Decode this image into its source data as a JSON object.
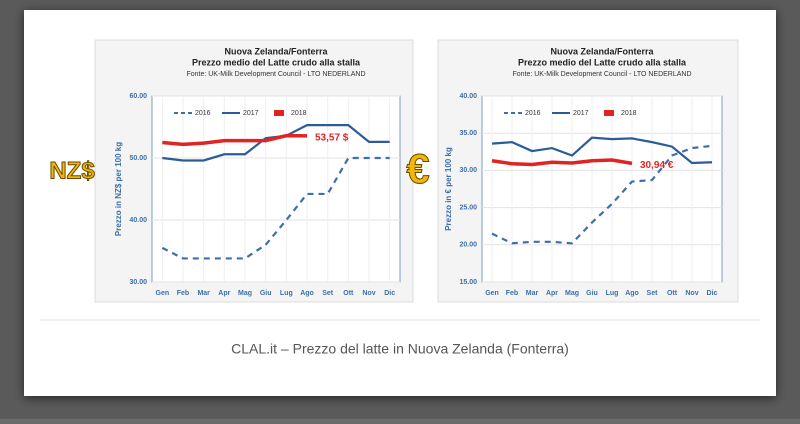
{
  "caption": "CLAL.it – Prezzo del latte in Nuova Zelanda (Fonterra)",
  "chart_data": [
    {
      "type": "line",
      "title": "Nuova Zelanda/Fonterra",
      "subtitle": "Prezzo medio del Latte crudo alla stalla",
      "source": "Fonte: UK-Milk Development Council - LTO NEDERLAND",
      "ylabel": "Prezzo in NZ$ per 100 kg",
      "currency": "NZ$",
      "categories": [
        "Gen",
        "Feb",
        "Mar",
        "Apr",
        "Mag",
        "Giu",
        "Lug",
        "Ago",
        "Set",
        "Ott",
        "Nov",
        "Dic"
      ],
      "ylim": [
        30,
        60
      ],
      "yticks": [
        {
          "value": 30,
          "label": "30.00"
        },
        {
          "value": 40,
          "label": "40.00"
        },
        {
          "value": 50,
          "label": "50.00"
        },
        {
          "value": 60,
          "label": "60.00"
        }
      ],
      "grid": true,
      "series": [
        {
          "name": "2016",
          "color": "#3d6fa8",
          "dashed": true,
          "values": [
            35.5,
            33.8,
            33.8,
            33.8,
            33.8,
            36,
            40,
            44.2,
            44.2,
            50,
            50,
            50
          ]
        },
        {
          "name": "2017",
          "color": "#2c5c97",
          "dashed": false,
          "values": [
            50,
            49.6,
            49.6,
            50.6,
            50.6,
            53.2,
            53.6,
            55.3,
            55.3,
            55.3,
            52.6,
            52.6
          ]
        },
        {
          "name": "2018",
          "color": "#e02424",
          "dashed": false,
          "values": [
            52.5,
            52.2,
            52.4,
            52.8,
            52.8,
            52.8,
            53.6,
            53.57,
            null,
            null,
            null,
            null
          ],
          "value_labels": [
            null,
            null,
            null,
            null,
            null,
            null,
            null,
            "53,57 $",
            null,
            null,
            null,
            null
          ]
        }
      ]
    },
    {
      "type": "line",
      "title": "Nuova Zelanda/Fonterra",
      "subtitle": "Prezzo medio del Latte crudo alla stalla",
      "source": "Fonte: UK-Milk Development Council - LTO NEDERLAND",
      "ylabel": "Prezzo in € per 100 kg",
      "currency": "€",
      "categories": [
        "Gen",
        "Feb",
        "Mar",
        "Apr",
        "Mag",
        "Giu",
        "Lug",
        "Ago",
        "Set",
        "Ott",
        "Nov",
        "Dic"
      ],
      "ylim": [
        15,
        40
      ],
      "yticks": [
        {
          "value": 15,
          "label": "15.00"
        },
        {
          "value": 20,
          "label": "20.00"
        },
        {
          "value": 25,
          "label": "25.00"
        },
        {
          "value": 30,
          "label": "30.00"
        },
        {
          "value": 35,
          "label": "35.00"
        },
        {
          "value": 40,
          "label": "40.00"
        }
      ],
      "grid": true,
      "series": [
        {
          "name": "2016",
          "color": "#3d6fa8",
          "dashed": true,
          "values": [
            21.5,
            20.2,
            20.4,
            20.4,
            20.2,
            23,
            25.5,
            28.5,
            28.7,
            32,
            33,
            33.3
          ]
        },
        {
          "name": "2017",
          "color": "#2c5c97",
          "dashed": false,
          "values": [
            33.6,
            33.8,
            32.6,
            33,
            32,
            34.4,
            34.2,
            34.3,
            33.8,
            33.2,
            31,
            31.1
          ]
        },
        {
          "name": "2018",
          "color": "#e02424",
          "dashed": false,
          "values": [
            31.3,
            30.9,
            30.8,
            31.1,
            31,
            31.3,
            31.4,
            30.94,
            null,
            null,
            null,
            null
          ],
          "value_labels": [
            null,
            null,
            null,
            null,
            null,
            null,
            null,
            "30,94 €",
            null,
            null,
            null,
            null
          ]
        }
      ]
    }
  ]
}
